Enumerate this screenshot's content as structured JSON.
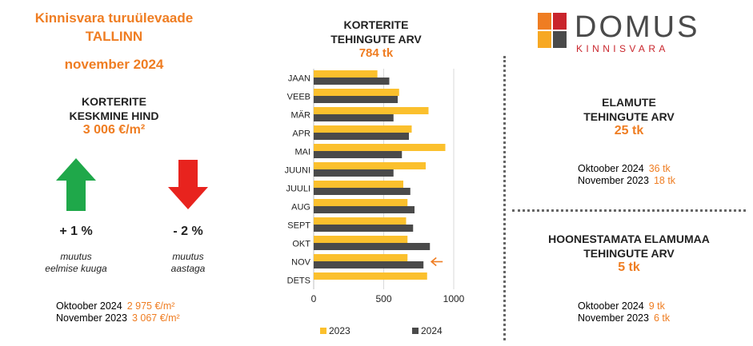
{
  "header": {
    "line1": "Kinnisvara turuülevaade",
    "line2": "TALLINN",
    "line3": "november 2024"
  },
  "price": {
    "title1": "KORTERITE",
    "title2": "KESKMINE HIND",
    "value": "3 006 €/m²",
    "up_change": "+ 1 %",
    "up_caption1": "muutus",
    "up_caption2": "eelmise kuuga",
    "down_change": "- 2 %",
    "down_caption1": "muutus",
    "down_caption2": "aastaga",
    "cmp": [
      {
        "label": "Oktoober 2024",
        "value": "2 975 €/m²"
      },
      {
        "label": "November 2023",
        "value": "3 067 €/m²"
      }
    ],
    "up_icon": "arrow-up-icon",
    "down_icon": "arrow-down-icon",
    "up_color": "#1fa84a",
    "down_color": "#e8231e"
  },
  "chart_title": {
    "line1": "KORTERITE",
    "line2": "TEHINGUTE ARV",
    "value": "784 tk"
  },
  "chart_data": {
    "type": "bar",
    "orientation": "horizontal",
    "categories": [
      "JAAN",
      "VEEB",
      "MÄR",
      "APR",
      "MAI",
      "JUUNI",
      "JUULI",
      "AUG",
      "SEPT",
      "OKT",
      "NOV",
      "DETS"
    ],
    "series": [
      {
        "name": "2023",
        "color": "#fbc02d",
        "values": [
          455,
          610,
          820,
          700,
          940,
          800,
          640,
          670,
          660,
          670,
          670,
          810
        ]
      },
      {
        "name": "2024",
        "color": "#4a4a4a",
        "values": [
          540,
          600,
          570,
          680,
          630,
          570,
          690,
          720,
          710,
          830,
          784,
          null
        ]
      }
    ],
    "xticks": [
      0,
      500,
      1000
    ],
    "xlim": [
      0,
      1200
    ],
    "legend_position": "bottom",
    "grid": true,
    "annotation": {
      "category": "NOV",
      "icon": "arrow-left-icon",
      "color": "#ef7d22"
    }
  },
  "logo": {
    "brand": "DOMUS",
    "sub": "KINNISVARA"
  },
  "houses": {
    "title1": "ELAMUTE",
    "title2": "TEHINGUTE ARV",
    "value": "25 tk",
    "cmp": [
      {
        "label": "Oktoober 2024",
        "value": "36 tk"
      },
      {
        "label": "November 2023",
        "value": "18 tk"
      }
    ]
  },
  "land": {
    "title1": "HOONESTAMATA ELAMUMAA",
    "title2": "TEHINGUTE ARV",
    "value": "5 tk",
    "cmp": [
      {
        "label": "Oktoober 2024",
        "value": "9 tk"
      },
      {
        "label": "November 2023",
        "value": "6 tk"
      }
    ]
  }
}
